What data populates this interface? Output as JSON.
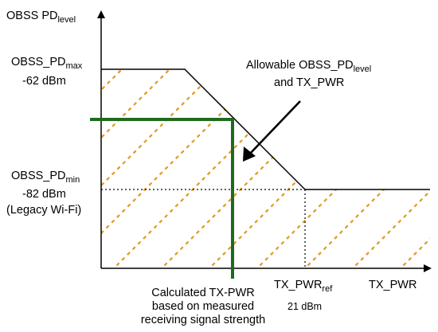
{
  "axes": {
    "y_title_main": "OBSS PD",
    "y_title_sub": "level",
    "x_title": "TX_PWR"
  },
  "levels": {
    "max_main": "OBSS_PD",
    "max_sub": "max",
    "max_value": "-62 dBm",
    "min_main": "OBSS_PD",
    "min_sub": "min",
    "min_value": "-82 dBm",
    "min_note": "(Legacy Wi-Fi)"
  },
  "tx_ref": {
    "main": "TX_PWR",
    "sub": "ref",
    "value": "21 dBm"
  },
  "annotation": {
    "line1_prefix": "Allowable  OBSS_PD",
    "line1_sub": "level",
    "line2": "and TX_PWR"
  },
  "calc_label": {
    "line1": "Calculated TX-PWR",
    "line2": "based on measured",
    "line3": "receiving signal strength"
  },
  "colors": {
    "hatch": "#E0A030",
    "highlight": "#1E6B1E",
    "line": "#000000"
  }
}
